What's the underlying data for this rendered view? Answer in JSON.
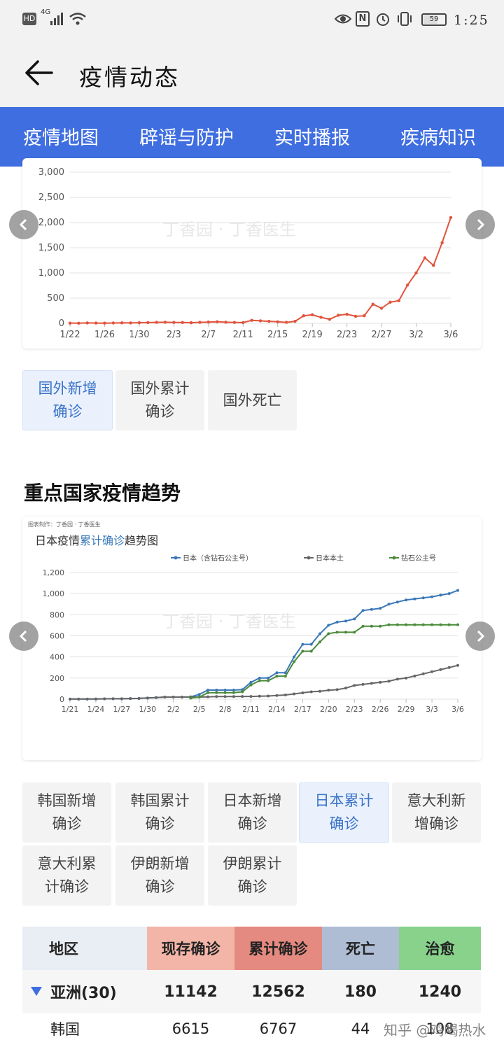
{
  "status_bar": {
    "network": "4G",
    "battery": "59",
    "time": "1:25"
  },
  "header": {
    "title": "疫情动态"
  },
  "tabs": [
    "疫情地图",
    "辟谣与防护",
    "实时播报",
    "疾病知识"
  ],
  "chart1": {
    "watermark": "丁香园 · 丁香医生",
    "y_ticks": [
      "3,000",
      "2,500",
      "2,000",
      "1,500",
      "1,000",
      "500",
      "0"
    ],
    "x_ticks": [
      "1/22",
      "1/26",
      "1/30",
      "2/3",
      "2/7",
      "2/11",
      "2/15",
      "2/19",
      "2/23",
      "2/27",
      "3/2",
      "3/6"
    ]
  },
  "chart1_buttons": [
    "国外新增确诊",
    "国外累计确诊",
    "国外死亡"
  ],
  "section_title": "重点国家疫情趋势",
  "chart2": {
    "source": "图表制作：丁香园 · 丁香医生",
    "title_prefix": "日本疫情",
    "title_highlight": "累计确诊",
    "title_suffix": "趋势图",
    "watermark": "丁香园 · 丁香医生",
    "y_ticks": [
      "1,200",
      "1,000",
      "800",
      "600",
      "400",
      "200",
      "0"
    ],
    "x_ticks": [
      "1/21",
      "1/24",
      "1/27",
      "1/30",
      "2/2",
      "2/5",
      "2/8",
      "2/11",
      "2/14",
      "2/17",
      "2/20",
      "2/23",
      "2/26",
      "2/29",
      "3/3",
      "3/6"
    ]
  },
  "chart2_buttons": [
    "韩国新增确诊",
    "韩国累计确诊",
    "日本新增确诊",
    "日本累计确诊",
    "意大利新增确诊",
    "意大利累计确诊",
    "伊朗新增确诊",
    "伊朗累计确诊"
  ],
  "table": {
    "headers": [
      "地区",
      "现存确诊",
      "累计确诊",
      "死亡",
      "治愈"
    ],
    "rows": [
      {
        "region": "亚洲(30)",
        "current": "11142",
        "cumulative": "12562",
        "deaths": "180",
        "cured": "1240"
      },
      {
        "region": "韩国",
        "current": "6615",
        "cumulative": "6767",
        "deaths": "44",
        "cured": "108"
      }
    ]
  },
  "footer_watermark": "知乎 @鸡喝热水",
  "colors": {
    "tab_bar": "#3f6ee0",
    "line_red": "#e2533c",
    "line_blue": "#3a78b8",
    "line_gray": "#666666",
    "line_green": "#4a8a3a",
    "hdr_current": "#f3b5a8",
    "hdr_cumulative": "#e48a80",
    "hdr_deaths": "#aebdd4",
    "hdr_cured": "#88d28c"
  },
  "chart_data": [
    {
      "type": "line",
      "title": "",
      "x": [
        "1/22",
        "1/23",
        "1/24",
        "1/25",
        "1/26",
        "1/27",
        "1/28",
        "1/29",
        "1/30",
        "1/31",
        "2/1",
        "2/2",
        "2/3",
        "2/4",
        "2/5",
        "2/6",
        "2/7",
        "2/8",
        "2/9",
        "2/10",
        "2/11",
        "2/12",
        "2/13",
        "2/14",
        "2/15",
        "2/16",
        "2/17",
        "2/18",
        "2/19",
        "2/20",
        "2/21",
        "2/22",
        "2/23",
        "2/24",
        "2/25",
        "2/26",
        "2/27",
        "2/28",
        "2/29",
        "3/1",
        "3/2",
        "3/3",
        "3/4",
        "3/5",
        "3/6"
      ],
      "series": [
        {
          "values": [
            5,
            3,
            8,
            6,
            4,
            7,
            10,
            8,
            12,
            15,
            20,
            22,
            18,
            16,
            12,
            20,
            25,
            30,
            22,
            18,
            15,
            60,
            50,
            40,
            30,
            20,
            40,
            150,
            170,
            120,
            80,
            160,
            180,
            140,
            150,
            380,
            300,
            420,
            450,
            760,
            1000,
            1300,
            1150,
            1600,
            2100
          ]
        }
      ],
      "ylim": [
        0,
        3000
      ]
    },
    {
      "type": "line",
      "title": "日本疫情累计确诊趋势图",
      "x": [
        "1/21",
        "1/22",
        "1/23",
        "1/24",
        "1/25",
        "1/26",
        "1/27",
        "1/28",
        "1/29",
        "1/30",
        "1/31",
        "2/1",
        "2/2",
        "2/3",
        "2/4",
        "2/5",
        "2/6",
        "2/7",
        "2/8",
        "2/9",
        "2/10",
        "2/11",
        "2/12",
        "2/13",
        "2/14",
        "2/15",
        "2/16",
        "2/17",
        "2/18",
        "2/19",
        "2/20",
        "2/21",
        "2/22",
        "2/23",
        "2/24",
        "2/25",
        "2/26",
        "2/27",
        "2/28",
        "2/29",
        "3/1",
        "3/2",
        "3/3",
        "3/4",
        "3/5",
        "3/6"
      ],
      "series": [
        {
          "name": "日本（含钻石公主号）",
          "values": [
            1,
            1,
            1,
            2,
            3,
            4,
            4,
            6,
            7,
            11,
            15,
            20,
            20,
            20,
            22,
            45,
            86,
            86,
            86,
            86,
            90,
            160,
            200,
            200,
            250,
            250,
            400,
            520,
            520,
            620,
            700,
            730,
            740,
            760,
            840,
            850,
            860,
            900,
            920,
            940,
            950,
            960,
            970,
            985,
            1000,
            1030
          ]
        },
        {
          "name": "日本本土",
          "values": [
            1,
            1,
            1,
            2,
            3,
            4,
            4,
            6,
            7,
            11,
            15,
            20,
            20,
            20,
            20,
            20,
            22,
            25,
            25,
            25,
            26,
            26,
            28,
            30,
            35,
            40,
            50,
            60,
            70,
            75,
            85,
            90,
            105,
            130,
            140,
            150,
            160,
            170,
            190,
            200,
            220,
            240,
            260,
            280,
            300,
            320
          ]
        },
        {
          "name": "钻石公主号",
          "values": [
            null,
            null,
            null,
            null,
            null,
            null,
            null,
            null,
            null,
            null,
            null,
            null,
            null,
            null,
            10,
            20,
            61,
            61,
            61,
            61,
            70,
            135,
            175,
            175,
            218,
            218,
            355,
            454,
            454,
            542,
            621,
            634,
            634,
            634,
            691,
            691,
            691,
            705,
            705,
            705,
            705,
            705,
            705,
            705,
            705,
            705
          ]
        }
      ],
      "ylim": [
        0,
        1200
      ]
    }
  ]
}
